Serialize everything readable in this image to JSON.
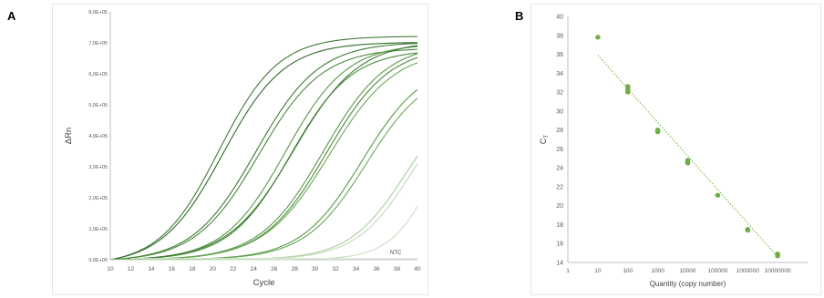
{
  "panels": {
    "a": "A",
    "b": "B"
  },
  "chart_data": [
    {
      "type": "line",
      "panel": "A",
      "xlabel": "Cycle",
      "ylabel": "ΔRn",
      "xlim": [
        10,
        40
      ],
      "ylim": [
        0,
        800000
      ],
      "x_ticks": [
        "10",
        "12",
        "14",
        "16",
        "18",
        "20",
        "22",
        "24",
        "26",
        "28",
        "30",
        "32",
        "34",
        "36",
        "38",
        "40"
      ],
      "y_ticks": [
        "0,0E+00",
        "1,0E+05",
        "2,0E+05",
        "3,0E+05",
        "4,0E+05",
        "5,0E+05",
        "6,0E+05",
        "7,0E+05",
        "8,0E+05"
      ],
      "annotation": "NTC",
      "grid": false,
      "legend": "none",
      "series": [
        {
          "midpoint": 20.6,
          "plateau": 740000,
          "slope": 2.9,
          "color": "#3d7a33"
        },
        {
          "midpoint": 21.0,
          "plateau": 720000,
          "slope": 3.0,
          "color": "#2f6b2a"
        },
        {
          "midpoint": 24.2,
          "plateau": 710000,
          "slope": 3.1,
          "color": "#3d7a33"
        },
        {
          "midpoint": 24.5,
          "plateau": 690000,
          "slope": 3.1,
          "color": "#4a8a3c"
        },
        {
          "midpoint": 27.1,
          "plateau": 700000,
          "slope": 3.0,
          "color": "#5a9a46"
        },
        {
          "midpoint": 27.6,
          "plateau": 680000,
          "slope": 3.0,
          "color": "#4a8a3c"
        },
        {
          "midpoint": 27.9,
          "plateau": 710000,
          "slope": 3.2,
          "color": "#3d7a33"
        },
        {
          "midpoint": 30.8,
          "plateau": 700000,
          "slope": 3.1,
          "color": "#5a9a46"
        },
        {
          "midpoint": 31.1,
          "plateau": 690000,
          "slope": 3.1,
          "color": "#4a8a3c"
        },
        {
          "midpoint": 31.4,
          "plateau": 680000,
          "slope": 3.2,
          "color": "#6aa858"
        },
        {
          "midpoint": 34.6,
          "plateau": 640000,
          "slope": 3.0,
          "color": "#5a9a46"
        },
        {
          "midpoint": 35.0,
          "plateau": 620000,
          "slope": 3.0,
          "color": "#6aa858"
        },
        {
          "midpoint": 38.9,
          "plateau": 560000,
          "slope": 2.8,
          "color": "#a8cc9c"
        },
        {
          "midpoint": 39.6,
          "plateau": 580000,
          "slope": 2.8,
          "color": "#c2dbb7"
        },
        {
          "midpoint": 42.0,
          "plateau": 600000,
          "slope": 2.2,
          "color": "#c8dfbf"
        }
      ],
      "ntc_line": {
        "value": 4000,
        "color": "#d8e8d2"
      }
    },
    {
      "type": "scatter",
      "panel": "B",
      "xlabel": "Quantity (copy number)",
      "ylabel": "C",
      "ylabel_sub": "T",
      "x_scale": "log",
      "xlim": [
        1,
        100000000
      ],
      "ylim": [
        14,
        40
      ],
      "x_ticks": [
        "1",
        "10",
        "100",
        "1000",
        "10000",
        "100000",
        "1000000",
        "10000000"
      ],
      "y_ticks": [
        "14",
        "16",
        "18",
        "20",
        "22",
        "24",
        "26",
        "28",
        "30",
        "32",
        "34",
        "36",
        "38",
        "40"
      ],
      "grid": false,
      "legend": "none",
      "marker_color": "#70ad47",
      "points": [
        {
          "x": 10,
          "y": 37.8
        },
        {
          "x": 100,
          "y": 32.6
        },
        {
          "x": 100,
          "y": 32.3
        },
        {
          "x": 100,
          "y": 32.0
        },
        {
          "x": 1000,
          "y": 28.0
        },
        {
          "x": 1000,
          "y": 27.8
        },
        {
          "x": 10000,
          "y": 24.8
        },
        {
          "x": 10000,
          "y": 24.6
        },
        {
          "x": 10000,
          "y": 24.5
        },
        {
          "x": 100000,
          "y": 21.1
        },
        {
          "x": 1000000,
          "y": 17.5
        },
        {
          "x": 1000000,
          "y": 17.4
        },
        {
          "x": 10000000,
          "y": 14.9
        },
        {
          "x": 10000000,
          "y": 14.7
        }
      ],
      "trendline": {
        "x_start": 10,
        "y_start": 35.9,
        "x_end": 10000000,
        "y_end": 14.6,
        "style": "dotted"
      }
    }
  ]
}
